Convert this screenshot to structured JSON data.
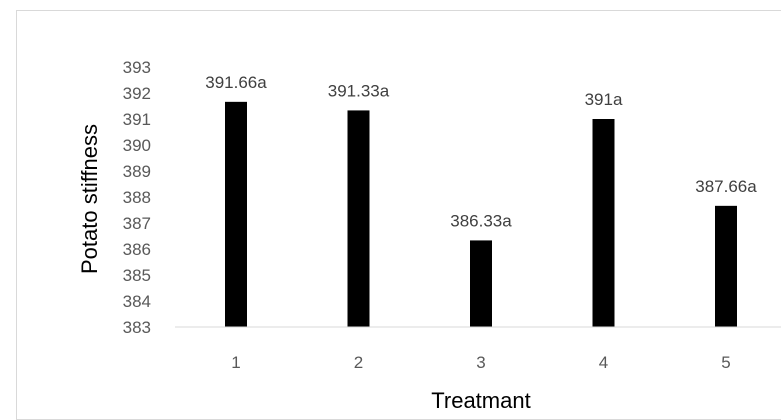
{
  "chart_data": {
    "type": "bar",
    "categories": [
      "1",
      "2",
      "3",
      "4",
      "5"
    ],
    "values": [
      391.66,
      391.33,
      386.33,
      391,
      387.66
    ],
    "data_labels": [
      "391.66a",
      "391.33a",
      "386.33a",
      "391a",
      "387.66a"
    ],
    "xlabel": "Treatmant",
    "ylabel": "Potato stiffness",
    "ylim": [
      383,
      393
    ],
    "yticks": [
      "383",
      "384",
      "385",
      "386",
      "387",
      "388",
      "389",
      "390",
      "391",
      "392",
      "393"
    ],
    "grid": false,
    "bar_color": "#000000",
    "axis_color": "#d9d9d9"
  }
}
